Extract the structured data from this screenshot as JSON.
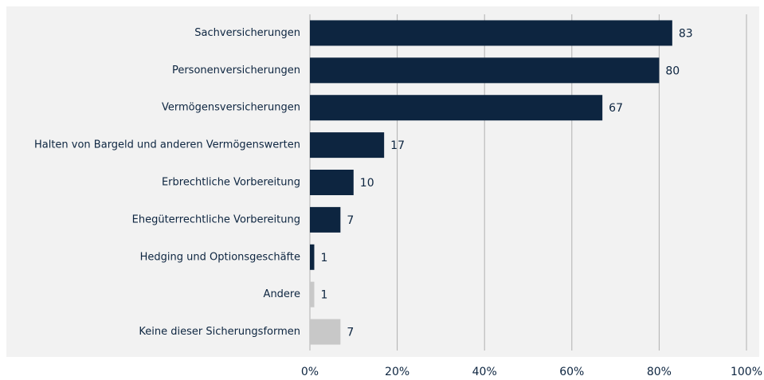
{
  "chart_data": {
    "type": "hbar",
    "categories": [
      "Sachversicherungen",
      "Personenversicherungen",
      "Vermögensversicherungen",
      "Halten von Bargeld und anderen Vermögenswerten",
      "Erbrechtliche Vorbereitung",
      "Ehegüterrechtliche Vorbereitung",
      "Hedging und Optionsgeschäfte",
      "Andere",
      "Keine dieser Sicherungsformen"
    ],
    "values": [
      83,
      80,
      67,
      17,
      10,
      7,
      1,
      1,
      7
    ],
    "colors": [
      "#0d2540",
      "#0d2540",
      "#0d2540",
      "#0d2540",
      "#0d2540",
      "#0d2540",
      "#0d2540",
      "#c8c8c8",
      "#c8c8c8"
    ],
    "xlim": [
      0,
      100
    ],
    "xticks": [
      {
        "value": 0,
        "label": "0%"
      },
      {
        "value": 20,
        "label": "20%"
      },
      {
        "value": 40,
        "label": "40%"
      },
      {
        "value": 60,
        "label": "60%"
      },
      {
        "value": 80,
        "label": "80%"
      },
      {
        "value": 100,
        "label": "100%"
      }
    ],
    "grid": true
  }
}
